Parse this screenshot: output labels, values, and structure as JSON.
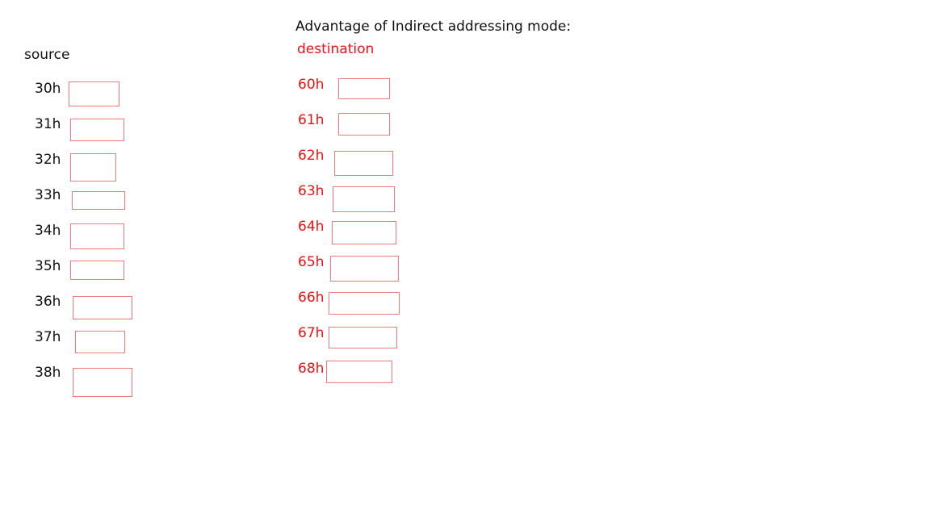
{
  "title": "Advantage of Indirect addressing mode:",
  "source": {
    "label": "source",
    "addresses": [
      "30h",
      "31h",
      "32h",
      "33h",
      "34h",
      "35h",
      "36h",
      "37h",
      "38h"
    ]
  },
  "destination": {
    "label": "destination",
    "addresses": [
      "60h",
      "61h",
      "62h",
      "63h",
      "64h",
      "65h",
      "66h",
      "67h",
      "68h"
    ]
  },
  "colors": {
    "destination_text": "#ee1111",
    "box_border": "#f07a7a",
    "source_text": "#111111"
  }
}
